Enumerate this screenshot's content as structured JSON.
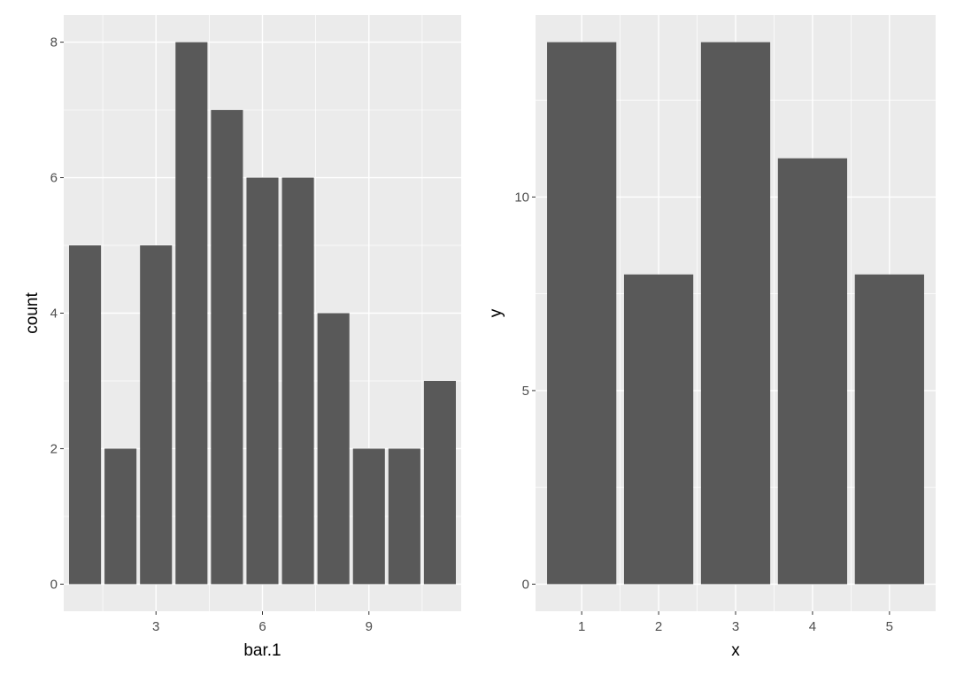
{
  "chart_data": [
    {
      "type": "bar",
      "xlabel": "bar.1",
      "ylabel": "count",
      "x": [
        1,
        2,
        3,
        4,
        5,
        6,
        7,
        8,
        9,
        10,
        11
      ],
      "values": [
        5,
        2,
        5,
        8,
        7,
        6,
        6,
        4,
        2,
        2,
        3
      ],
      "xticks": [
        3,
        6,
        9
      ],
      "yticks": [
        0,
        2,
        4,
        6,
        8
      ],
      "xlim": [
        0.4,
        11.6
      ],
      "ylim": [
        -0.4,
        8.4
      ],
      "grid": true
    },
    {
      "type": "bar",
      "xlabel": "x",
      "ylabel": "y",
      "categories": [
        "1",
        "2",
        "3",
        "4",
        "5"
      ],
      "values": [
        14,
        8,
        14,
        11,
        8
      ],
      "yticks": [
        0,
        5,
        10
      ],
      "ylim": [
        -0.7,
        14.7
      ],
      "grid": true
    }
  ],
  "colors": {
    "panel_background": "#EBEBEB",
    "grid_line": "#FFFFFF",
    "bar_fill": "#595959",
    "tick_text": "#4D4D4D",
    "tick_mark": "#333333"
  }
}
